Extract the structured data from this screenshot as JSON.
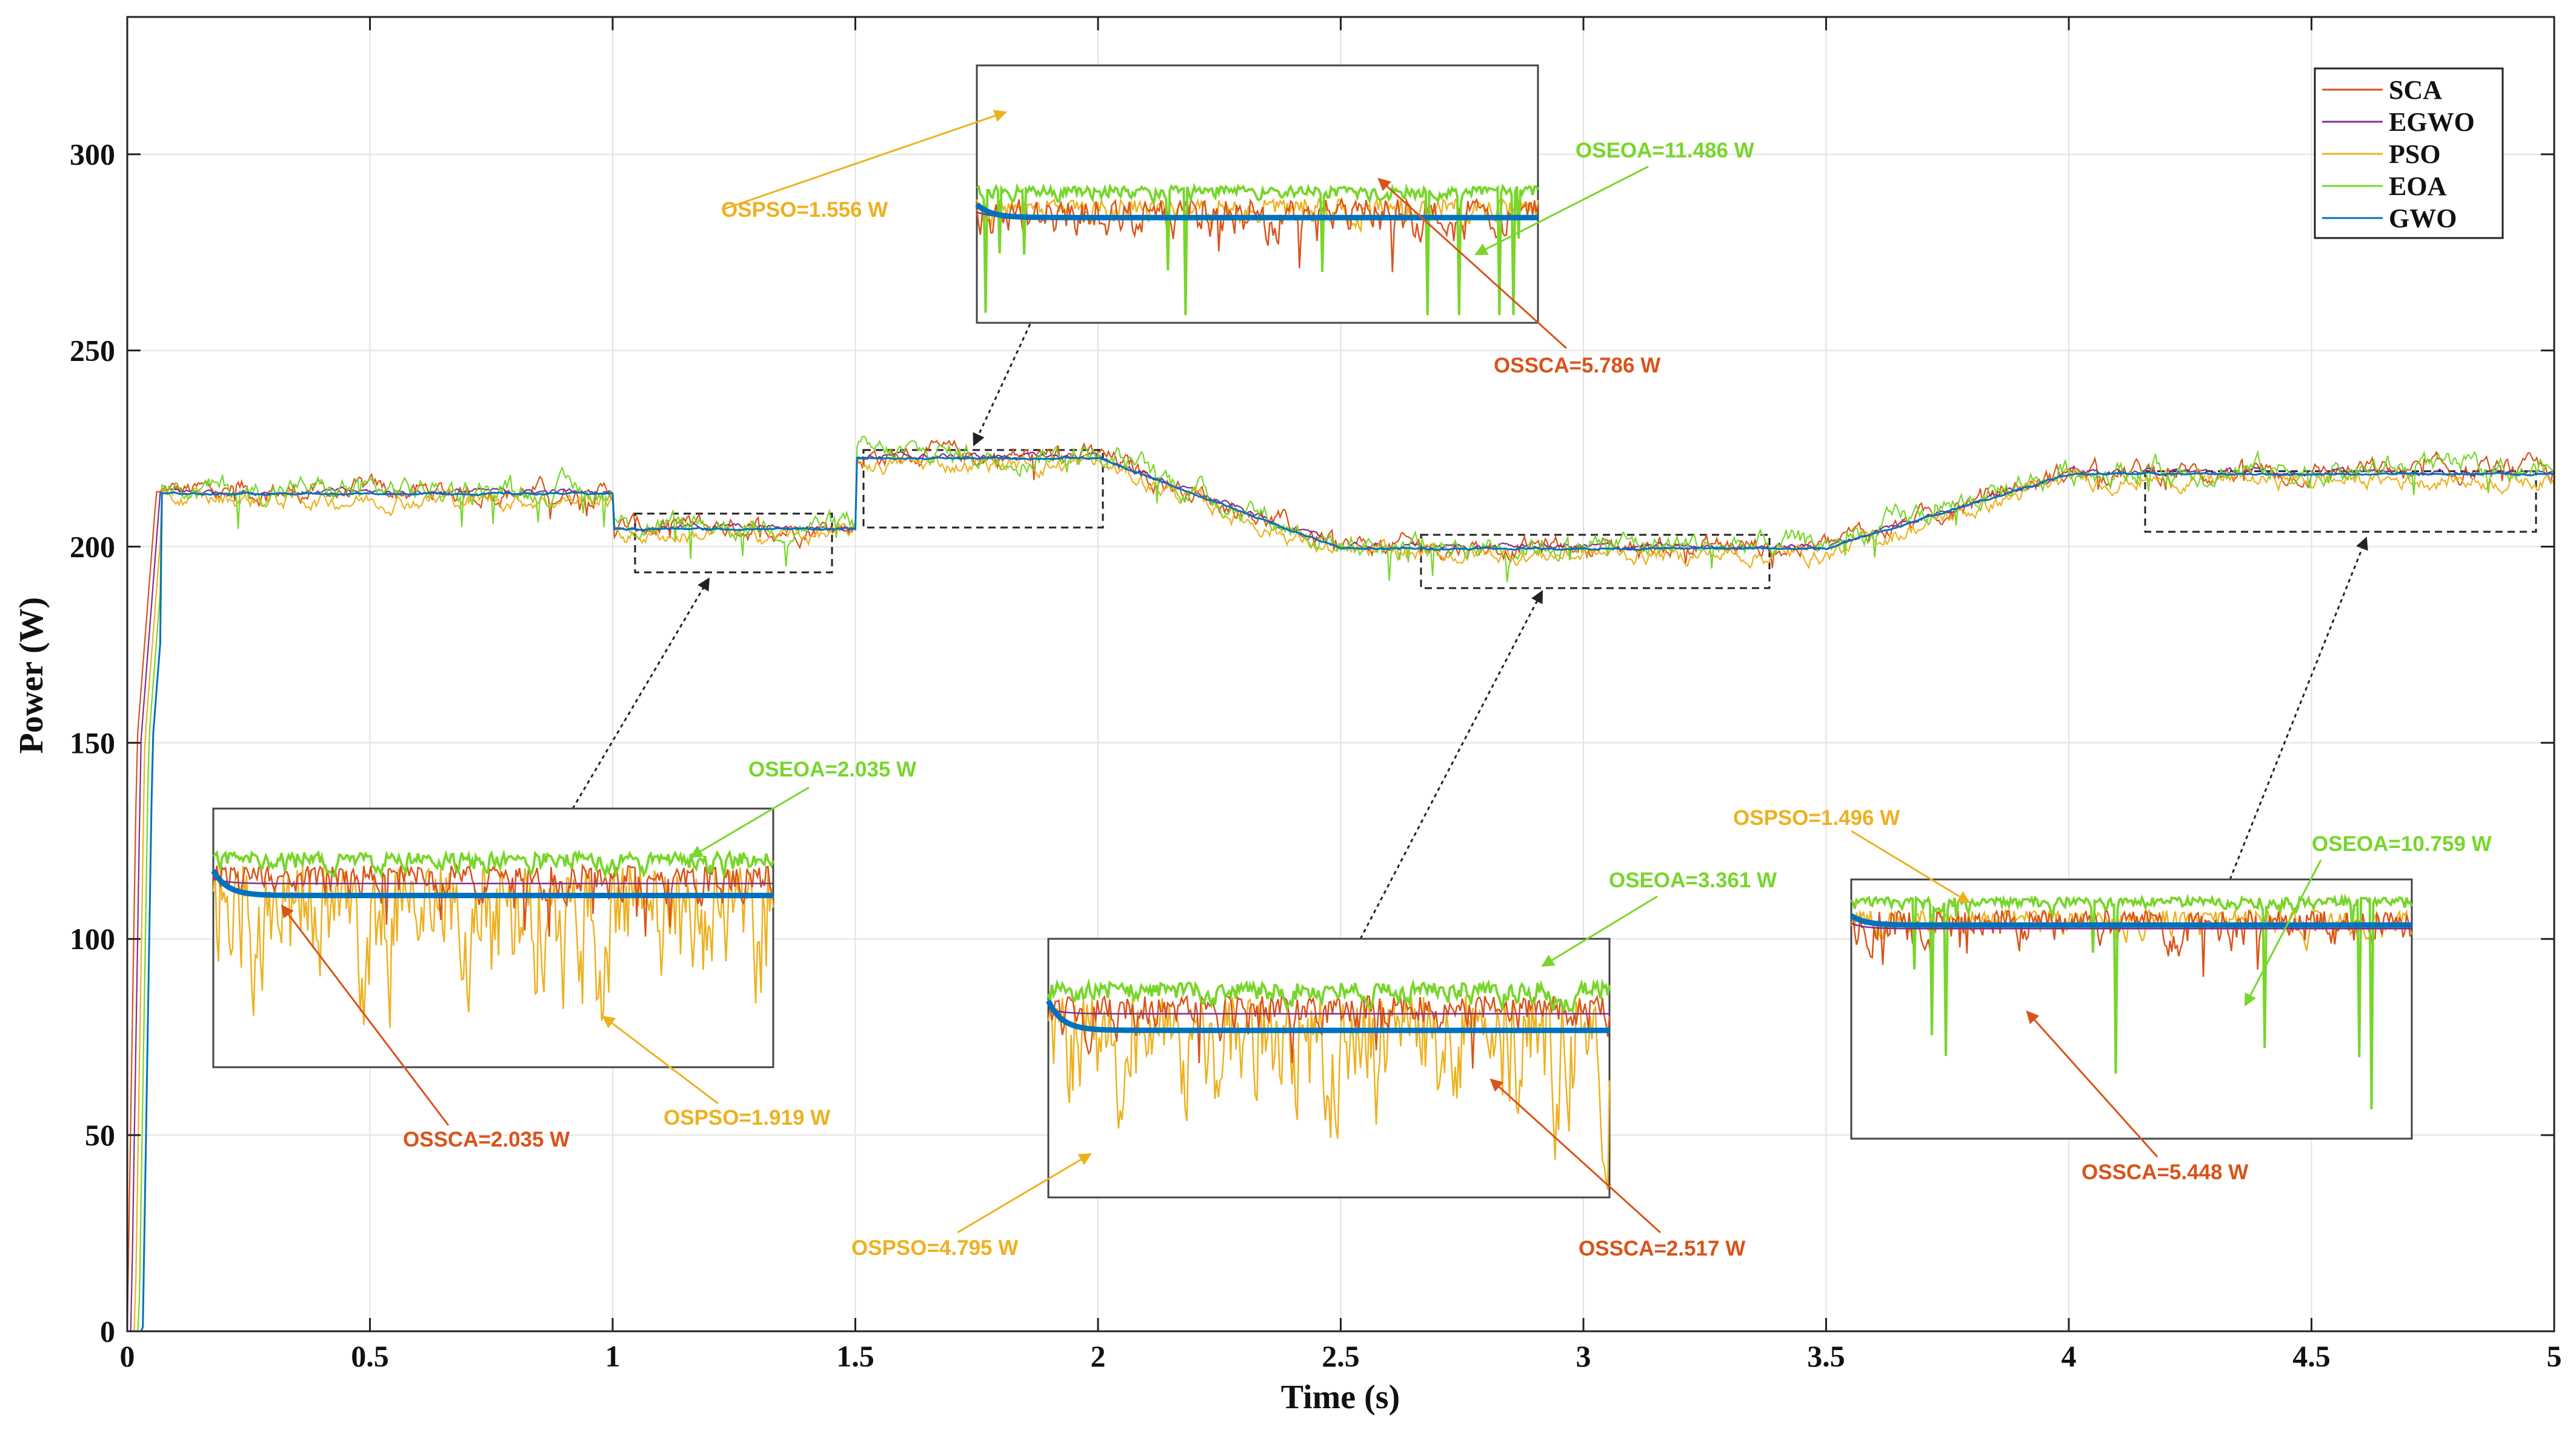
{
  "colors": {
    "SCA": "#D95319",
    "EGWO": "#7E2F8E",
    "PSO": "#EDB120",
    "EOA": "#77D62A",
    "GWO": "#0072BD",
    "grid": "#e3e3e3"
  },
  "chart_data": {
    "type": "line",
    "title": "",
    "xlabel": "Time (s)",
    "ylabel": "Power (W)",
    "xlim": [
      0,
      5
    ],
    "ylim": [
      0,
      335
    ],
    "grid": true,
    "legend_position": "top-right",
    "x_ticks": [
      0,
      0.5,
      1,
      1.5,
      2,
      2.5,
      3,
      3.5,
      4,
      4.5,
      5
    ],
    "x_tick_labels": [
      "0",
      "0.5",
      "1",
      "1.5",
      "2",
      "2.5",
      "3",
      "3.5",
      "4",
      "4.5",
      "5"
    ],
    "y_ticks": [
      0,
      50,
      100,
      150,
      200,
      250,
      300
    ],
    "y_tick_labels": [
      "0",
      "50",
      "100",
      "150",
      "200",
      "250",
      "300"
    ],
    "reference_profile": {
      "t": [
        0,
        0.02,
        0.06,
        1.0,
        1.0,
        1.5,
        1.5,
        2.0,
        2.5,
        3.5,
        4.0,
        5.0
      ],
      "p": [
        0,
        150,
        214,
        214,
        205,
        205,
        223,
        223,
        200,
        200,
        219,
        219
      ]
    },
    "series": [
      {
        "name": "SCA",
        "noise": 3.5,
        "offset": 0
      },
      {
        "name": "EGWO",
        "noise": 1.0,
        "offset": 0
      },
      {
        "name": "PSO",
        "noise": 3.0,
        "offset": -2
      },
      {
        "name": "EOA",
        "noise": 4.0,
        "offset": 0.5
      },
      {
        "name": "GWO",
        "noise": 0.3,
        "offset": -0.5
      }
    ],
    "annotations": [
      {
        "text": "OSPSO=1.556 W",
        "series": "PSO"
      },
      {
        "text": "OSEOA=11.486 W",
        "series": "EOA"
      },
      {
        "text": "OSSCA=5.786 W",
        "series": "SCA"
      },
      {
        "text": "OSEOA=2.035 W",
        "series": "EOA"
      },
      {
        "text": "OSSCA=2.035 W",
        "series": "SCA"
      },
      {
        "text": "OSPSO=1.919 W",
        "series": "PSO"
      },
      {
        "text": "OSEOA=3.361 W",
        "series": "EOA"
      },
      {
        "text": "OSPSO=4.795 W",
        "series": "PSO"
      },
      {
        "text": "OSSCA=2.517 W",
        "series": "SCA"
      },
      {
        "text": "OSPSO=1.496 W",
        "series": "PSO"
      },
      {
        "text": "OSEOA=10.759 W",
        "series": "EOA"
      },
      {
        "text": "OSSCA=5.448 W",
        "series": "SCA"
      }
    ]
  }
}
